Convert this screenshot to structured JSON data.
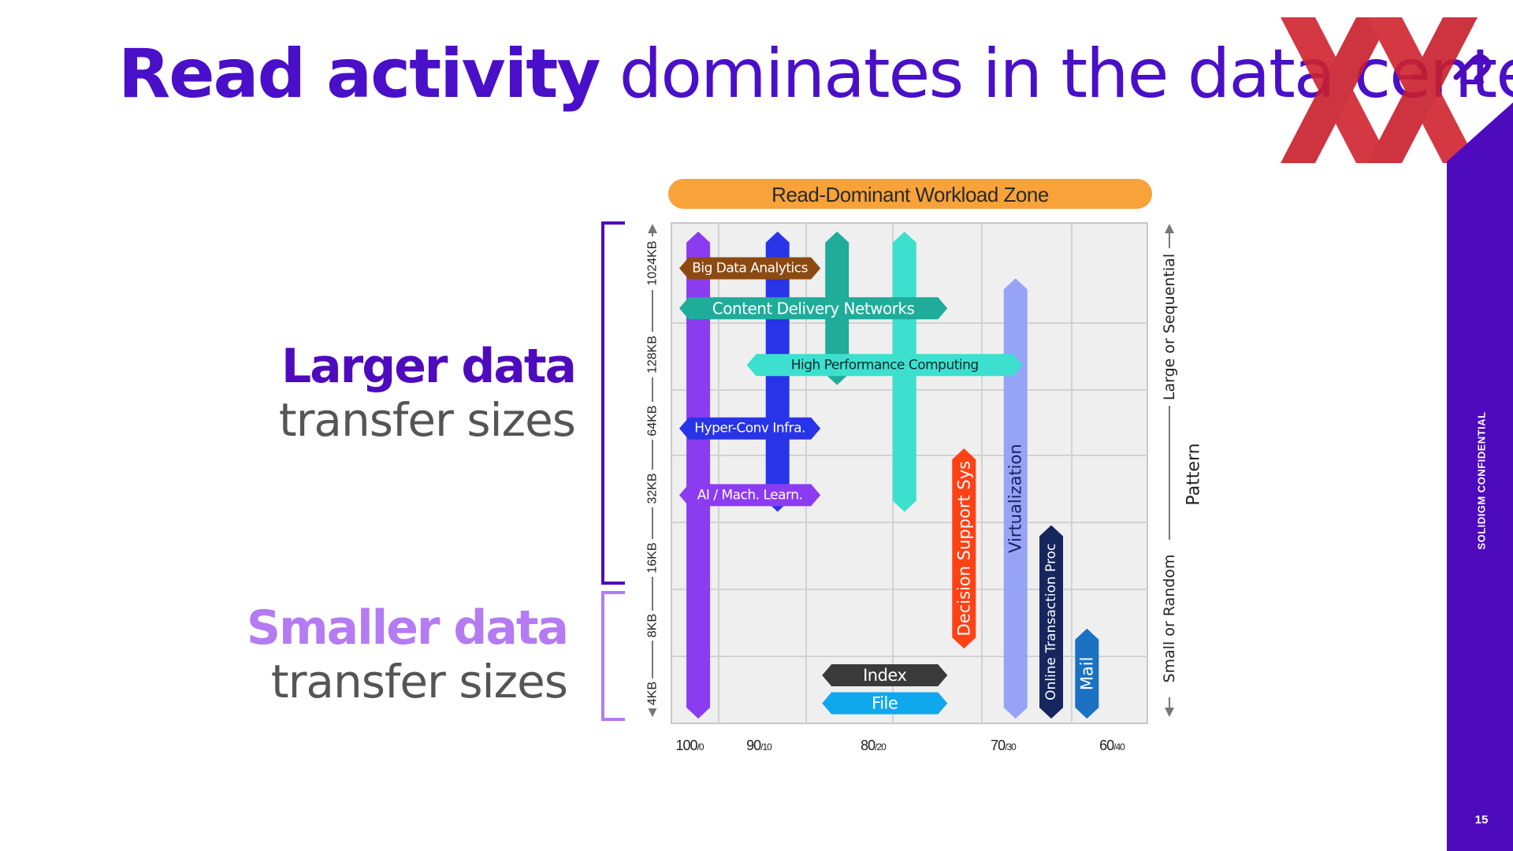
{
  "title": {
    "bold": "Read activity",
    "regular": "dominates in the data center"
  },
  "left_labels": {
    "larger_bold": "Larger data",
    "larger_sub": "transfer sizes",
    "smaller_bold": "Smaller data",
    "smaller_sub": "transfer sizes"
  },
  "side_text": "SOLIDIGM CONFIDENTIAL",
  "page_number": "15",
  "colors": {
    "title": "#4a0fc8",
    "brand_purple": "#4e0bbd",
    "light_purple": "#b47bf2",
    "zone_orange": "#f8a23a",
    "logo_red": "#d0232f"
  },
  "chart_data": {
    "type": "range-bar",
    "zone_label": "Read-Dominant Workload Zone",
    "x_axis": {
      "label": "",
      "ticks": [
        {
          "main": "100",
          "sub": "/0",
          "x": 0
        },
        {
          "main": "90",
          "sub": "/10",
          "x": 1
        },
        {
          "main": "80",
          "sub": "/20",
          "x": 2.6
        },
        {
          "main": "70",
          "sub": "/30",
          "x": 4.3
        },
        {
          "main": "60",
          "sub": "/40",
          "x": 5.6
        }
      ]
    },
    "y_axis": {
      "label": "",
      "ticks": [
        "4KB",
        "8KB",
        "16KB",
        "32KB",
        "64KB",
        "128KB",
        "1024KB"
      ]
    },
    "right_axis": {
      "top_label": "Large or Sequential",
      "bottom_label": "Small or Random",
      "middle_label": "Pattern"
    },
    "vertical_bars": [
      {
        "name": "purple-column",
        "x": 0.1,
        "y_from": 0,
        "y_to": 7.3,
        "color": "#8c3cf0",
        "label": ""
      },
      {
        "name": "blue-column",
        "x": 1.1,
        "y_from": 3.1,
        "y_to": 7.3,
        "color": "#2834e8",
        "label": ""
      },
      {
        "name": "teal-column",
        "x": 1.85,
        "y_from": 5.0,
        "y_to": 7.3,
        "color": "#1fac9a",
        "label": ""
      },
      {
        "name": "aqua-column",
        "x": 2.7,
        "y_from": 3.1,
        "y_to": 7.3,
        "color": "#3de0cf",
        "label": ""
      },
      {
        "name": "decision-support",
        "x": 3.45,
        "y_from": 1.05,
        "y_to": 4.05,
        "color": "#ff4116",
        "label": "Decision Support Sys",
        "text_color": "#ffffff"
      },
      {
        "name": "virtualization",
        "x": 4.1,
        "y_from": 0,
        "y_to": 6.6,
        "color": "#97a3f5",
        "label": "Virtualization",
        "text_color": "#1a2160"
      },
      {
        "name": "oltp",
        "x": 4.55,
        "y_from": 0,
        "y_to": 2.9,
        "color": "#16265e",
        "label": "Online Transaction Proc",
        "text_color": "#ffffff"
      },
      {
        "name": "mail",
        "x": 5.0,
        "y_from": 0,
        "y_to": 1.35,
        "color": "#1b71c2",
        "label": "Mail",
        "text_color": "#ffffff"
      }
    ],
    "horizontal_bars": [
      {
        "name": "big-data-analytics",
        "x_from": 0,
        "x_to": 1.8,
        "y": 6.75,
        "color": "#8c4a12",
        "label": "Big Data Analytics",
        "text_color": "#ffffff"
      },
      {
        "name": "content-delivery-networks",
        "x_from": 0,
        "x_to": 3.4,
        "y": 6.15,
        "color": "#1fac9a",
        "label": "Content Delivery Networks",
        "text_color": "#ffffff"
      },
      {
        "name": "high-performance-computing",
        "x_from": 0.85,
        "x_to": 4.35,
        "y": 5.3,
        "color": "#3de0cf",
        "label": "High Performance Computing",
        "text_color": "#102a2a"
      },
      {
        "name": "hyper-conv-infra",
        "x_from": 0,
        "x_to": 1.8,
        "y": 4.35,
        "color": "#2834e8",
        "label": "Hyper-Conv Infra.",
        "text_color": "#ffffff"
      },
      {
        "name": "ai-mach-learn",
        "x_from": 0,
        "x_to": 1.8,
        "y": 3.35,
        "color": "#8c3cf0",
        "label": "AI / Mach. Learn.",
        "text_color": "#ffffff"
      },
      {
        "name": "index",
        "x_from": 1.8,
        "x_to": 3.4,
        "y": 0.65,
        "color": "#3a3a3a",
        "label": "Index",
        "text_color": "#ffffff"
      },
      {
        "name": "file",
        "x_from": 1.8,
        "x_to": 3.4,
        "y": 0.23,
        "color": "#10a8ec",
        "label": "File",
        "text_color": "#ffffff"
      }
    ]
  }
}
